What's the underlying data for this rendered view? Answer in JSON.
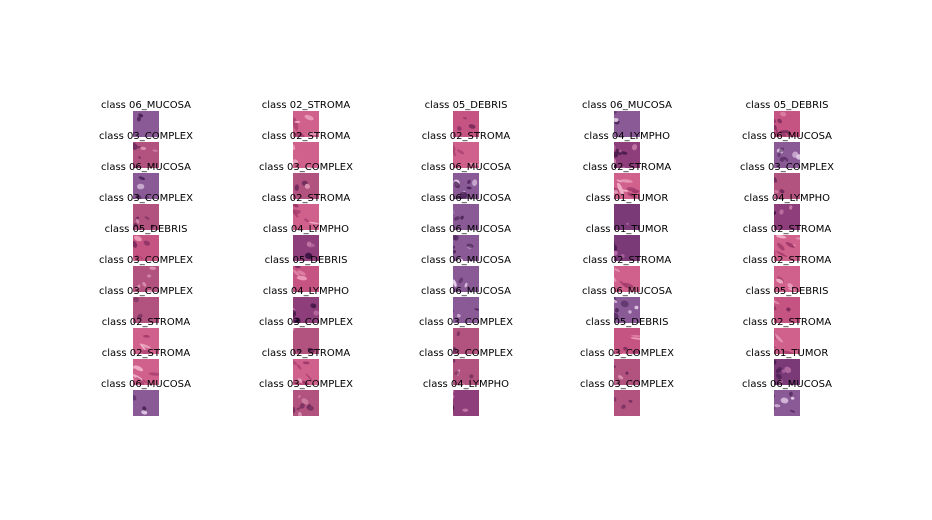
{
  "figure": {
    "columns": [
      {
        "titles": [
          "class 06_MUCOSA",
          "class 03_COMPLEX",
          "class 06_MUCOSA",
          "class 03_COMPLEX",
          "class 05_DEBRIS",
          "class 03_COMPLEX",
          "class 03_COMPLEX",
          "class 02_STROMA",
          "class 02_STROMA",
          "class 06_MUCOSA"
        ],
        "classes": [
          "06_MUCOSA",
          "03_COMPLEX",
          "06_MUCOSA",
          "03_COMPLEX",
          "05_DEBRIS",
          "03_COMPLEX",
          "03_COMPLEX",
          "02_STROMA",
          "02_STROMA",
          "06_MUCOSA"
        ]
      },
      {
        "titles": [
          "class 02_STROMA",
          "class 02_STROMA",
          "class 03_COMPLEX",
          "class 02_STROMA",
          "class 04_LYMPHO",
          "class 05_DEBRIS",
          "class 04_LYMPHO",
          "class 03_COMPLEX",
          "class 02_STROMA",
          "class 03_COMPLEX"
        ],
        "classes": [
          "02_STROMA",
          "02_STROMA",
          "03_COMPLEX",
          "02_STROMA",
          "04_LYMPHO",
          "05_DEBRIS",
          "04_LYMPHO",
          "03_COMPLEX",
          "02_STROMA",
          "03_COMPLEX"
        ]
      },
      {
        "titles": [
          "class 05_DEBRIS",
          "class 02_STROMA",
          "class 06_MUCOSA",
          "class 06_MUCOSA",
          "class 06_MUCOSA",
          "class 06_MUCOSA",
          "class 06_MUCOSA",
          "class 03_COMPLEX",
          "class 03_COMPLEX",
          "class 04_LYMPHO"
        ],
        "classes": [
          "05_DEBRIS",
          "02_STROMA",
          "06_MUCOSA",
          "06_MUCOSA",
          "06_MUCOSA",
          "06_MUCOSA",
          "06_MUCOSA",
          "03_COMPLEX",
          "03_COMPLEX",
          "04_LYMPHO"
        ]
      },
      {
        "titles": [
          "class 06_MUCOSA",
          "class 04_LYMPHO",
          "class 02_STROMA",
          "class 01_TUMOR",
          "class 01_TUMOR",
          "class 02_STROMA",
          "class 06_MUCOSA",
          "class 05_DEBRIS",
          "class 03_COMPLEX",
          "class 03_COMPLEX"
        ],
        "classes": [
          "06_MUCOSA",
          "04_LYMPHO",
          "02_STROMA",
          "01_TUMOR",
          "01_TUMOR",
          "02_STROMA",
          "06_MUCOSA",
          "05_DEBRIS",
          "03_COMPLEX",
          "03_COMPLEX"
        ]
      },
      {
        "titles": [
          "class 05_DEBRIS",
          "class 06_MUCOSA",
          "class 03_COMPLEX",
          "class 04_LYMPHO",
          "class 02_STROMA",
          "class 02_STROMA",
          "class 05_DEBRIS",
          "class 02_STROMA",
          "class 01_TUMOR",
          "class 06_MUCOSA"
        ],
        "classes": [
          "05_DEBRIS",
          "06_MUCOSA",
          "03_COMPLEX",
          "04_LYMPHO",
          "02_STROMA",
          "02_STROMA",
          "05_DEBRIS",
          "02_STROMA",
          "01_TUMOR",
          "06_MUCOSA"
        ]
      }
    ]
  },
  "tissue_palettes": {
    "01_TUMOR": {
      "base": "#7a3a78",
      "dark": "#4a1e52",
      "light": "#b46aa4"
    },
    "02_STROMA": {
      "base": "#d0608c",
      "dark": "#a03a6a",
      "light": "#f0b0c8"
    },
    "03_COMPLEX": {
      "base": "#b2527e",
      "dark": "#6e2a5c",
      "light": "#dc94b4"
    },
    "04_LYMPHO": {
      "base": "#8e3e7a",
      "dark": "#3c1442",
      "light": "#c47aa8"
    },
    "05_DEBRIS": {
      "base": "#c65482",
      "dark": "#7e2c5e",
      "light": "#ec9cb8"
    },
    "06_MUCOSA": {
      "base": "#8a5a96",
      "dark": "#4c2458",
      "light": "#e6d0ea"
    }
  }
}
